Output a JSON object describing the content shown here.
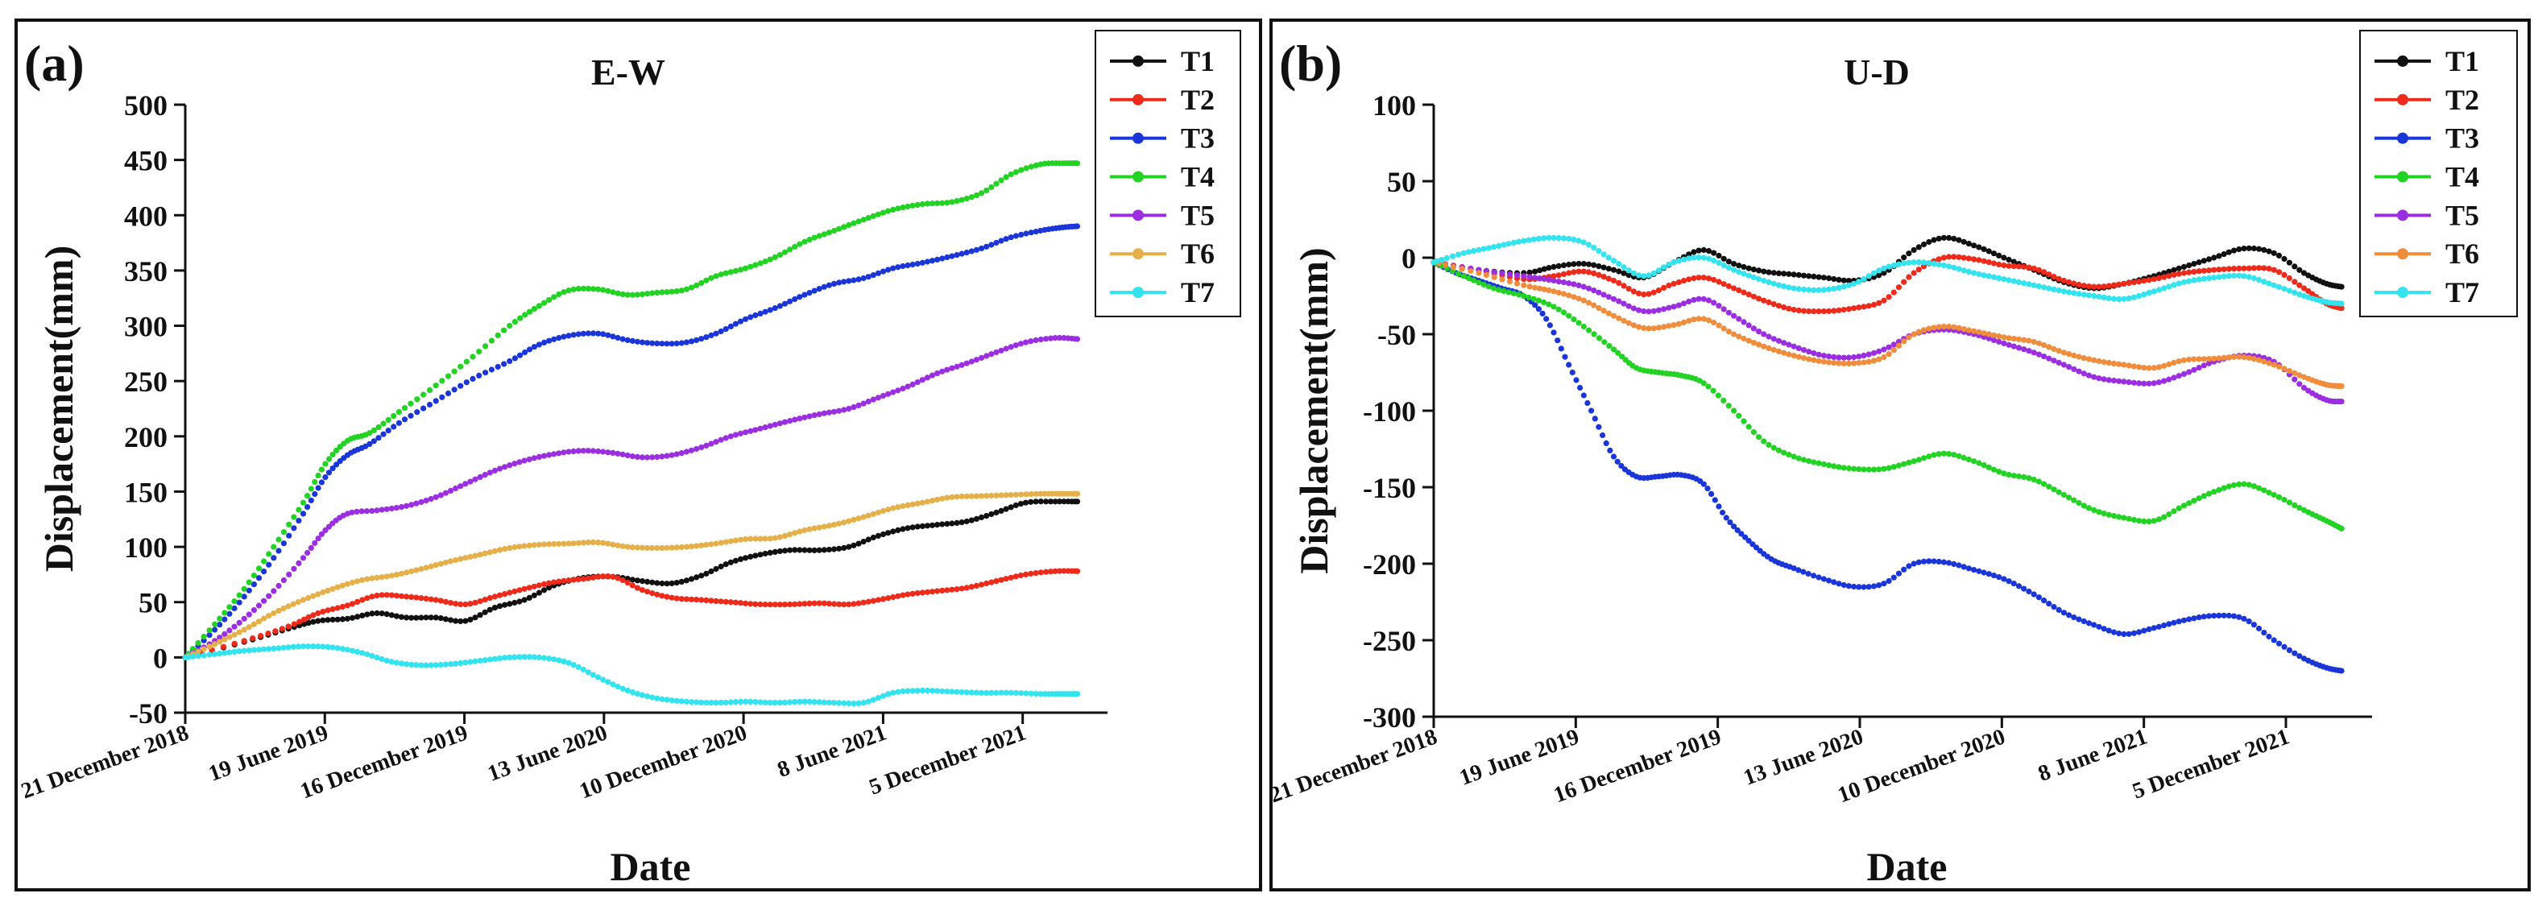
{
  "chart_data": [
    {
      "type": "line",
      "panel_label": "(a)",
      "title": "E-W",
      "xlabel": "Date",
      "ylabel": "Displacement(mm)",
      "ylim": [
        -50,
        500
      ],
      "yticks": [
        -50,
        0,
        50,
        100,
        150,
        200,
        250,
        300,
        350,
        400,
        450,
        500
      ],
      "xticks": [
        "21 December 2018",
        "19 June 2019",
        "16 December 2019",
        "13 June 2020",
        "10 December 2020",
        "8 June 2021",
        "5 December 2021"
      ],
      "xlim_days": [
        0,
        1240
      ],
      "legend_position": "top-right",
      "series": [
        {
          "name": "T1",
          "color": "#111111",
          "x": [
            0,
            80,
            140,
            180,
            220,
            260,
            300,
            340,
            380,
            420,
            460,
            500,
            540,
            580,
            620,
            660,
            700,
            740,
            780,
            820,
            860,
            900,
            940,
            980,
            1020,
            1060,
            1100,
            1140,
            1180,
            1210
          ],
          "y": [
            0,
            14,
            26,
            33,
            35,
            40,
            36,
            36,
            33,
            45,
            52,
            65,
            72,
            73,
            69,
            67,
            74,
            86,
            93,
            97,
            97,
            100,
            110,
            117,
            120,
            123,
            131,
            140,
            141,
            141
          ]
        },
        {
          "name": "T2",
          "color": "#ee2a1b",
          "x": [
            0,
            80,
            140,
            180,
            220,
            260,
            300,
            340,
            380,
            420,
            460,
            500,
            540,
            580,
            620,
            660,
            700,
            740,
            780,
            820,
            860,
            900,
            940,
            980,
            1020,
            1060,
            1100,
            1140,
            1180,
            1210
          ],
          "y": [
            0,
            15,
            28,
            40,
            47,
            56,
            55,
            52,
            48,
            55,
            62,
            68,
            71,
            73,
            61,
            54,
            52,
            50,
            48,
            48,
            49,
            48,
            52,
            57,
            60,
            63,
            69,
            75,
            78,
            78
          ]
        },
        {
          "name": "T3",
          "color": "#1b36d8",
          "x": [
            0,
            40,
            80,
            120,
            160,
            190,
            220,
            250,
            290,
            340,
            390,
            440,
            480,
            520,
            560,
            600,
            640,
            680,
            720,
            760,
            800,
            840,
            880,
            920,
            960,
            1000,
            1040,
            1080,
            1120,
            1160,
            1190,
            1210
          ],
          "y": [
            0,
            25,
            55,
            90,
            130,
            163,
            183,
            193,
            212,
            232,
            252,
            268,
            283,
            291,
            293,
            287,
            284,
            285,
            293,
            306,
            316,
            328,
            338,
            343,
            352,
            357,
            363,
            370,
            380,
            386,
            389,
            390
          ]
        },
        {
          "name": "T4",
          "color": "#22d323",
          "x": [
            0,
            40,
            80,
            120,
            160,
            190,
            220,
            250,
            290,
            340,
            390,
            440,
            480,
            520,
            560,
            600,
            640,
            680,
            720,
            760,
            800,
            840,
            880,
            920,
            960,
            1000,
            1040,
            1080,
            1120,
            1160,
            1190,
            1210
          ],
          "y": [
            0,
            30,
            62,
            100,
            140,
            175,
            196,
            203,
            222,
            246,
            272,
            300,
            318,
            332,
            333,
            328,
            330,
            333,
            345,
            352,
            362,
            376,
            386,
            396,
            405,
            410,
            412,
            420,
            437,
            446,
            447,
            447
          ]
        },
        {
          "name": "T5",
          "color": "#9a2ee0",
          "x": [
            0,
            40,
            80,
            120,
            160,
            190,
            220,
            260,
            300,
            340,
            380,
            420,
            460,
            500,
            540,
            580,
            620,
            660,
            700,
            740,
            780,
            820,
            860,
            900,
            940,
            980,
            1020,
            1060,
            1100,
            1140,
            1180,
            1210
          ],
          "y": [
            0,
            15,
            35,
            60,
            90,
            115,
            130,
            133,
            137,
            145,
            157,
            169,
            178,
            184,
            187,
            185,
            181,
            183,
            190,
            200,
            207,
            214,
            220,
            225,
            235,
            245,
            257,
            266,
            276,
            285,
            289,
            288
          ]
        },
        {
          "name": "T6",
          "color": "#e5b04a",
          "x": [
            0,
            40,
            80,
            120,
            160,
            200,
            240,
            280,
            320,
            360,
            400,
            440,
            480,
            520,
            560,
            600,
            640,
            680,
            720,
            760,
            800,
            840,
            880,
            920,
            960,
            1000,
            1040,
            1080,
            1120,
            1160,
            1190,
            1210
          ],
          "y": [
            0,
            12,
            25,
            40,
            52,
            62,
            70,
            74,
            80,
            87,
            93,
            99,
            102,
            103,
            104,
            100,
            99,
            100,
            103,
            107,
            108,
            115,
            120,
            127,
            135,
            140,
            145,
            146,
            147,
            148,
            148,
            148
          ]
        },
        {
          "name": "T7",
          "color": "#33e3ee",
          "x": [
            0,
            40,
            80,
            120,
            160,
            200,
            240,
            280,
            320,
            360,
            400,
            440,
            480,
            520,
            560,
            600,
            640,
            680,
            720,
            760,
            800,
            840,
            880,
            920,
            960,
            1000,
            1040,
            1080,
            1120,
            1160,
            1190,
            1210
          ],
          "y": [
            0,
            3,
            6,
            8,
            10,
            9,
            4,
            -4,
            -7,
            -6,
            -3,
            0,
            0,
            -5,
            -18,
            -30,
            -37,
            -40,
            -41,
            -40,
            -41,
            -40,
            -41,
            -41,
            -32,
            -30,
            -31,
            -32,
            -32,
            -33,
            -33,
            -33
          ]
        }
      ]
    },
    {
      "type": "line",
      "panel_label": "(b)",
      "title": "U-D",
      "xlabel": "Date",
      "ylabel": "Displacement(mm)",
      "ylim": [
        -300,
        100
      ],
      "yticks": [
        -300,
        -250,
        -200,
        -150,
        -100,
        -50,
        0,
        50,
        100
      ],
      "xticks": [
        "21 December 2018",
        "19 June 2019",
        "16 December 2019",
        "13 June 2020",
        "10 December 2020",
        "8 June 2021",
        "5 December 2021"
      ],
      "xlim_days": [
        0,
        1240
      ],
      "legend_position": "top-right",
      "series": [
        {
          "name": "T1",
          "color": "#111111",
          "x": [
            0,
            60,
            120,
            160,
            200,
            240,
            280,
            320,
            360,
            400,
            440,
            480,
            520,
            560,
            600,
            640,
            680,
            720,
            760,
            800,
            840,
            880,
            920,
            960,
            1000,
            1040,
            1080,
            1120,
            1160,
            1190,
            1210
          ],
          "y": [
            -3,
            -8,
            -10,
            -6,
            -4,
            -8,
            -13,
            -3,
            5,
            -4,
            -9,
            -11,
            -13,
            -15,
            -10,
            5,
            13,
            8,
            0,
            -8,
            -16,
            -20,
            -17,
            -12,
            -6,
            0,
            6,
            3,
            -10,
            -17,
            -19
          ]
        },
        {
          "name": "T2",
          "color": "#ee2a1b",
          "x": [
            0,
            60,
            120,
            160,
            200,
            240,
            280,
            320,
            360,
            400,
            440,
            480,
            520,
            560,
            600,
            640,
            680,
            720,
            760,
            800,
            840,
            880,
            920,
            960,
            1000,
            1040,
            1080,
            1120,
            1160,
            1190,
            1210
          ],
          "y": [
            -3,
            -8,
            -14,
            -12,
            -9,
            -15,
            -24,
            -17,
            -13,
            -20,
            -28,
            -34,
            -35,
            -33,
            -28,
            -10,
            0,
            -1,
            -5,
            -7,
            -15,
            -19,
            -17,
            -14,
            -10,
            -8,
            -7,
            -8,
            -20,
            -30,
            -33
          ]
        },
        {
          "name": "T3",
          "color": "#1b36d8",
          "x": [
            0,
            30,
            60,
            90,
            120,
            150,
            180,
            210,
            240,
            270,
            300,
            330,
            360,
            390,
            420,
            450,
            480,
            520,
            560,
            600,
            640,
            680,
            720,
            760,
            800,
            840,
            880,
            920,
            960,
            1000,
            1040,
            1080,
            1120,
            1160,
            1190,
            1210
          ],
          "y": [
            -3,
            -10,
            -15,
            -20,
            -25,
            -40,
            -70,
            -100,
            -130,
            -143,
            -143,
            -142,
            -148,
            -170,
            -185,
            -197,
            -203,
            -210,
            -215,
            -213,
            -200,
            -199,
            -204,
            -210,
            -220,
            -232,
            -240,
            -246,
            -242,
            -237,
            -234,
            -236,
            -250,
            -262,
            -268,
            -270
          ]
        },
        {
          "name": "T4",
          "color": "#22d323",
          "x": [
            0,
            40,
            80,
            120,
            160,
            200,
            240,
            270,
            300,
            330,
            360,
            400,
            440,
            480,
            520,
            560,
            600,
            640,
            680,
            720,
            760,
            800,
            840,
            880,
            920,
            960,
            1000,
            1040,
            1080,
            1120,
            1160,
            1190,
            1210
          ],
          "y": [
            -3,
            -12,
            -20,
            -25,
            -32,
            -45,
            -60,
            -72,
            -75,
            -77,
            -82,
            -100,
            -120,
            -130,
            -135,
            -138,
            -138,
            -133,
            -128,
            -133,
            -141,
            -145,
            -155,
            -165,
            -170,
            -172,
            -162,
            -153,
            -148,
            -155,
            -165,
            -172,
            -177
          ]
        },
        {
          "name": "T5",
          "color": "#9a2ee0",
          "x": [
            0,
            60,
            120,
            160,
            200,
            240,
            280,
            320,
            360,
            400,
            440,
            480,
            520,
            560,
            600,
            640,
            680,
            720,
            760,
            800,
            840,
            880,
            920,
            960,
            1000,
            1040,
            1080,
            1120,
            1160,
            1190,
            1210
          ],
          "y": [
            -3,
            -8,
            -12,
            -15,
            -19,
            -27,
            -35,
            -32,
            -27,
            -38,
            -50,
            -58,
            -64,
            -65,
            -60,
            -50,
            -47,
            -50,
            -56,
            -62,
            -70,
            -78,
            -81,
            -82,
            -76,
            -68,
            -64,
            -68,
            -85,
            -93,
            -94
          ]
        },
        {
          "name": "T6",
          "color": "#f08d3c",
          "x": [
            0,
            60,
            120,
            160,
            200,
            240,
            280,
            320,
            360,
            400,
            440,
            480,
            520,
            560,
            600,
            640,
            680,
            720,
            760,
            800,
            840,
            880,
            920,
            960,
            1000,
            1040,
            1080,
            1120,
            1160,
            1190,
            1210
          ],
          "y": [
            -3,
            -10,
            -18,
            -22,
            -28,
            -38,
            -46,
            -44,
            -40,
            -50,
            -58,
            -64,
            -68,
            -69,
            -65,
            -50,
            -45,
            -48,
            -52,
            -55,
            -62,
            -67,
            -70,
            -72,
            -67,
            -66,
            -65,
            -70,
            -78,
            -83,
            -84
          ]
        },
        {
          "name": "T7",
          "color": "#33e3ee",
          "x": [
            0,
            40,
            80,
            120,
            160,
            200,
            240,
            280,
            320,
            360,
            400,
            440,
            480,
            520,
            560,
            600,
            640,
            680,
            720,
            760,
            800,
            840,
            880,
            920,
            960,
            1000,
            1040,
            1080,
            1120,
            1160,
            1190,
            1210
          ],
          "y": [
            -3,
            3,
            7,
            11,
            13,
            10,
            -2,
            -12,
            -3,
            0,
            -8,
            -15,
            -20,
            -21,
            -17,
            -7,
            -3,
            -5,
            -10,
            -14,
            -18,
            -22,
            -25,
            -27,
            -22,
            -16,
            -13,
            -12,
            -18,
            -25,
            -29,
            -30
          ]
        }
      ]
    }
  ]
}
